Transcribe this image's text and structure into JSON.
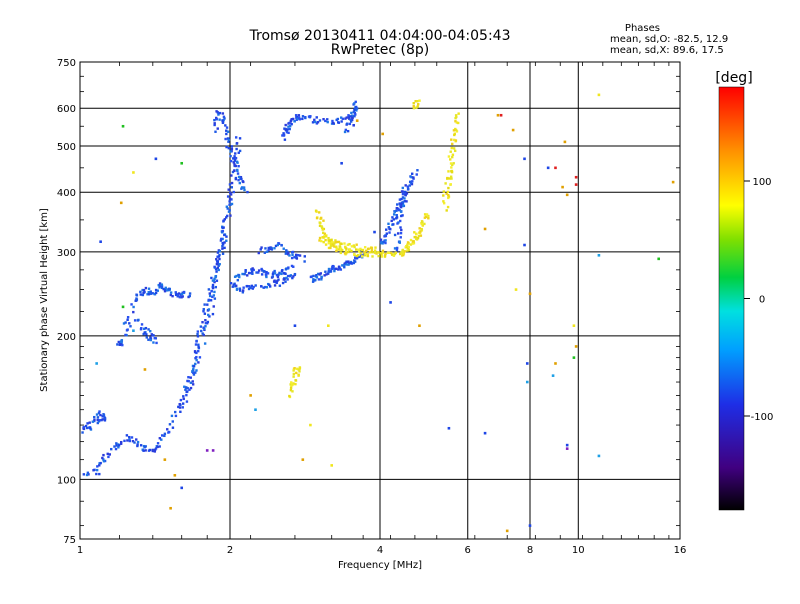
{
  "chart_data": {
    "type": "scatter",
    "title": "Tromsø 20130411 04:04:00-04:05:43",
    "subtitle": "RwPretec (8p)",
    "xlabel": "Frequency [MHz]",
    "ylabel": "Stationary phase Virtual Height [km]",
    "x_scale": "log",
    "y_scale": "log",
    "xlim": [
      1,
      16
    ],
    "ylim": [
      75,
      750
    ],
    "x_ticks": [
      1,
      2,
      4,
      6,
      8,
      10,
      16
    ],
    "x_tick_labels": [
      "1",
      "2",
      "4",
      "6",
      "8",
      "10",
      "16"
    ],
    "y_ticks": [
      75,
      100,
      200,
      300,
      400,
      500,
      600,
      750
    ],
    "y_tick_labels": [
      "75",
      "100",
      "200",
      "300",
      "400",
      "500",
      "600",
      "750"
    ],
    "grid": true,
    "stats": {
      "heading": "Phases",
      "line_o": "mean, sd,O: -82.5, 12.9",
      "line_x": "mean, sd,X:  89.6, 17.5"
    },
    "colorbar": {
      "label": "[deg]",
      "range": [
        -180,
        180
      ],
      "tick_values": [
        100,
        0,
        -100
      ],
      "tick_labels": [
        "100",
        "0",
        "-100"
      ]
    },
    "colors": {
      "o_mode": "#1e46e6",
      "x_mode": "#f0e61e"
    },
    "o_mode_traces": [
      {
        "x": [
          1.0,
          1.08,
          1.12,
          1.18,
          1.25,
          1.32,
          1.38,
          1.42,
          1.5,
          1.58,
          1.65,
          1.72,
          1.8,
          1.85,
          1.9,
          1.95,
          2.0
        ],
        "y": [
          102,
          104,
          110,
          118,
          122,
          118,
          115,
          117,
          125,
          140,
          160,
          180,
          210,
          240,
          280,
          330,
          400
        ]
      },
      {
        "x": [
          1.0,
          1.04,
          1.08,
          1.1,
          1.13
        ],
        "y": [
          125,
          128,
          133,
          138,
          132
        ]
      },
      {
        "x": [
          1.2,
          1.22,
          1.25,
          1.3,
          1.35,
          1.4,
          1.45,
          1.5,
          1.55,
          1.6,
          1.65
        ],
        "y": [
          190,
          195,
          215,
          240,
          250,
          245,
          255,
          250,
          245,
          242,
          245
        ]
      },
      {
        "x": [
          1.3,
          1.35,
          1.38,
          1.42
        ],
        "y": [
          215,
          205,
          200,
          195
        ]
      },
      {
        "x": [
          1.6,
          1.65,
          1.7,
          1.72,
          1.76,
          1.8,
          1.83,
          1.87,
          1.9,
          1.93,
          1.96,
          2.0,
          2.03,
          2.06,
          2.08
        ],
        "y": [
          140,
          155,
          170,
          190,
          210,
          230,
          250,
          270,
          290,
          310,
          340,
          380,
          420,
          470,
          520
        ]
      },
      {
        "x": [
          1.86,
          1.9,
          1.94,
          1.98,
          2.02,
          2.06,
          2.1,
          2.14
        ],
        "y": [
          540,
          590,
          560,
          520,
          480,
          450,
          420,
          400
        ]
      },
      {
        "x": [
          2.05,
          2.15,
          2.25,
          2.35,
          2.45,
          2.55,
          2.65
        ],
        "y": [
          265,
          270,
          275,
          270,
          268,
          272,
          280
        ]
      },
      {
        "x": [
          2.0,
          2.1,
          2.2,
          2.35,
          2.5,
          2.6,
          2.7
        ],
        "y": [
          255,
          250,
          252,
          255,
          258,
          262,
          268
        ]
      },
      {
        "x": [
          2.3,
          2.4,
          2.5,
          2.6,
          2.7,
          2.8
        ],
        "y": [
          300,
          305,
          310,
          300,
          295,
          290
        ]
      },
      {
        "x": [
          2.55,
          2.6,
          2.65,
          2.7,
          2.8,
          3.0,
          3.2,
          3.4,
          3.55
        ],
        "y": [
          520,
          540,
          560,
          570,
          575,
          565,
          560,
          570,
          580
        ]
      },
      {
        "x": [
          2.9,
          3.0,
          3.1,
          3.2,
          3.3,
          3.4,
          3.5,
          3.6,
          3.7
        ],
        "y": [
          262,
          265,
          270,
          275,
          278,
          282,
          285,
          290,
          300
        ]
      },
      {
        "x": [
          3.45,
          3.5,
          3.55,
          3.6
        ],
        "y": [
          540,
          560,
          590,
          610
        ]
      },
      {
        "x": [
          4.0,
          4.1,
          4.2,
          4.3,
          4.4,
          4.5,
          4.6,
          4.7
        ],
        "y": [
          310,
          320,
          340,
          360,
          380,
          400,
          420,
          440
        ]
      },
      {
        "x": [
          4.3,
          4.35,
          4.4,
          4.45,
          4.5
        ],
        "y": [
          300,
          330,
          360,
          380,
          410
        ]
      }
    ],
    "x_mode_traces": [
      {
        "x": [
          3.0,
          3.05,
          3.1,
          3.2,
          3.3,
          3.4,
          3.6,
          3.8,
          4.0,
          4.2,
          4.4
        ],
        "y": [
          365,
          345,
          325,
          310,
          305,
          300,
          298,
          296,
          295,
          296,
          298
        ]
      },
      {
        "x": [
          3.05,
          3.15,
          3.25,
          3.4,
          3.6,
          3.8,
          4.0
        ],
        "y": [
          320,
          315,
          312,
          308,
          306,
          304,
          302
        ]
      },
      {
        "x": [
          4.4,
          4.5,
          4.6,
          4.7,
          4.8,
          4.9,
          5.0
        ],
        "y": [
          300,
          305,
          310,
          320,
          330,
          345,
          360
        ]
      },
      {
        "x": [
          5.4,
          5.45,
          5.5,
          5.55,
          5.6,
          5.65,
          5.7
        ],
        "y": [
          370,
          400,
          430,
          460,
          500,
          540,
          590
        ]
      },
      {
        "x": [
          4.7,
          4.75
        ],
        "y": [
          600,
          620
        ]
      },
      {
        "x": [
          2.62,
          2.68,
          2.72,
          2.75
        ],
        "y": [
          150,
          160,
          168,
          172
        ]
      }
    ],
    "scatter_points": [
      {
        "x": 1.22,
        "y": 550,
        "c": "#20c020"
      },
      {
        "x": 1.42,
        "y": 470,
        "c": "#1e46e6"
      },
      {
        "x": 1.6,
        "y": 460,
        "c": "#20c020"
      },
      {
        "x": 1.21,
        "y": 380,
        "c": "#e0a000"
      },
      {
        "x": 1.1,
        "y": 315,
        "c": "#1e46e6"
      },
      {
        "x": 1.28,
        "y": 440,
        "c": "#f0e61e"
      },
      {
        "x": 1.22,
        "y": 230,
        "c": "#20c020"
      },
      {
        "x": 1.28,
        "y": 205,
        "c": "#1ea0e6"
      },
      {
        "x": 1.35,
        "y": 170,
        "c": "#e0a000"
      },
      {
        "x": 1.08,
        "y": 175,
        "c": "#1ea0e6"
      },
      {
        "x": 1.48,
        "y": 110,
        "c": "#e0a000"
      },
      {
        "x": 1.55,
        "y": 102,
        "c": "#e0a000"
      },
      {
        "x": 1.6,
        "y": 96,
        "c": "#1e46e6"
      },
      {
        "x": 1.52,
        "y": 87,
        "c": "#e0a000"
      },
      {
        "x": 1.8,
        "y": 115,
        "c": "#8020c0"
      },
      {
        "x": 1.85,
        "y": 115,
        "c": "#8020c0"
      },
      {
        "x": 2.25,
        "y": 140,
        "c": "#1ea0e6"
      },
      {
        "x": 2.2,
        "y": 150,
        "c": "#e0a000"
      },
      {
        "x": 2.7,
        "y": 210,
        "c": "#1e46e6"
      },
      {
        "x": 3.15,
        "y": 210,
        "c": "#f0e61e"
      },
      {
        "x": 2.9,
        "y": 130,
        "c": "#f0e61e"
      },
      {
        "x": 3.2,
        "y": 107,
        "c": "#f0e61e"
      },
      {
        "x": 2.8,
        "y": 110,
        "c": "#e0a000"
      },
      {
        "x": 3.35,
        "y": 460,
        "c": "#1e46e6"
      },
      {
        "x": 3.6,
        "y": 565,
        "c": "#e0a000"
      },
      {
        "x": 4.05,
        "y": 530,
        "c": "#e0a000"
      },
      {
        "x": 3.9,
        "y": 330,
        "c": "#1e46e6"
      },
      {
        "x": 4.2,
        "y": 235,
        "c": "#1e46e6"
      },
      {
        "x": 4.8,
        "y": 210,
        "c": "#e0a000"
      },
      {
        "x": 5.5,
        "y": 128,
        "c": "#1e46e6"
      },
      {
        "x": 6.5,
        "y": 335,
        "c": "#e0a000"
      },
      {
        "x": 6.9,
        "y": 580,
        "c": "#e0a000"
      },
      {
        "x": 7.0,
        "y": 580,
        "c": "#e02020"
      },
      {
        "x": 7.4,
        "y": 540,
        "c": "#e0a000"
      },
      {
        "x": 6.5,
        "y": 125,
        "c": "#1e46e6"
      },
      {
        "x": 7.5,
        "y": 250,
        "c": "#f0e61e"
      },
      {
        "x": 7.8,
        "y": 310,
        "c": "#1e46e6"
      },
      {
        "x": 7.8,
        "y": 470,
        "c": "#1e46e6"
      },
      {
        "x": 8.0,
        "y": 245,
        "c": "#e0a000"
      },
      {
        "x": 7.9,
        "y": 175,
        "c": "#1e46e6"
      },
      {
        "x": 7.9,
        "y": 160,
        "c": "#1ea0e6"
      },
      {
        "x": 7.2,
        "y": 78,
        "c": "#e0a000"
      },
      {
        "x": 8.0,
        "y": 80,
        "c": "#1e46e6"
      },
      {
        "x": 8.7,
        "y": 450,
        "c": "#1e46e6"
      },
      {
        "x": 9.0,
        "y": 450,
        "c": "#e02020"
      },
      {
        "x": 9.3,
        "y": 410,
        "c": "#e0a000"
      },
      {
        "x": 9.5,
        "y": 395,
        "c": "#e0a000"
      },
      {
        "x": 9.4,
        "y": 510,
        "c": "#e0a000"
      },
      {
        "x": 9.9,
        "y": 430,
        "c": "#e02020"
      },
      {
        "x": 9.9,
        "y": 415,
        "c": "#e02020"
      },
      {
        "x": 9.8,
        "y": 210,
        "c": "#f0e61e"
      },
      {
        "x": 9.9,
        "y": 190,
        "c": "#e0a000"
      },
      {
        "x": 9.8,
        "y": 180,
        "c": "#20c020"
      },
      {
        "x": 9.0,
        "y": 175,
        "c": "#e0a000"
      },
      {
        "x": 8.9,
        "y": 165,
        "c": "#1ea0e6"
      },
      {
        "x": 9.5,
        "y": 118,
        "c": "#1e46e6"
      },
      {
        "x": 9.5,
        "y": 116,
        "c": "#8020c0"
      },
      {
        "x": 11.0,
        "y": 640,
        "c": "#f0e61e"
      },
      {
        "x": 11.0,
        "y": 295,
        "c": "#1ea0e6"
      },
      {
        "x": 11.0,
        "y": 112,
        "c": "#1ea0e6"
      },
      {
        "x": 14.5,
        "y": 290,
        "c": "#20c020"
      },
      {
        "x": 15.5,
        "y": 420,
        "c": "#e0a000"
      }
    ]
  }
}
